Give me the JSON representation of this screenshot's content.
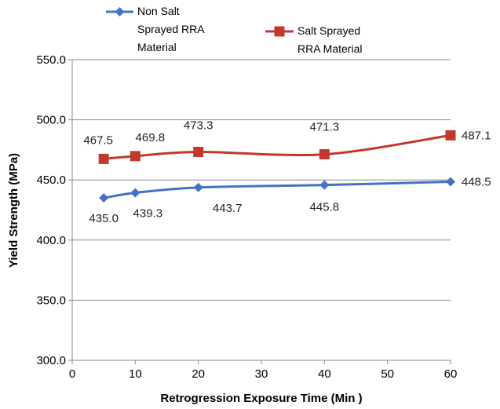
{
  "chart_data": {
    "type": "line",
    "xlabel": "Retrogression Exposure Time (Min )",
    "ylabel": "Yield Strength (MPa)",
    "xlim": [
      0,
      60
    ],
    "ylim": [
      300,
      550
    ],
    "x_ticks": [
      "0",
      "10",
      "20",
      "30",
      "40",
      "50",
      "60"
    ],
    "y_ticks": [
      "300.0",
      "350.0",
      "400.0",
      "450.0",
      "500.0",
      "550.0"
    ],
    "grid": "horizontal",
    "legend": "top",
    "x": [
      5,
      10,
      20,
      40,
      60
    ],
    "series": [
      {
        "name": "Non Salt Sprayed RRA Material",
        "name_lines": [
          "Non Salt",
          "Sprayed RRA",
          "Material"
        ],
        "color": "#4472C4",
        "marker": "diamond",
        "values": [
          435.0,
          439.3,
          443.7,
          445.8,
          448.5
        ],
        "labels": [
          "435.0",
          "439.3",
          "443.7",
          "445.8",
          "448.5"
        ]
      },
      {
        "name": "Salt Sprayed RRA Material",
        "name_lines": [
          "Salt Sprayed",
          "RRA Material"
        ],
        "color": "#C0392B",
        "marker": "square",
        "values": [
          467.5,
          469.8,
          473.3,
          471.3,
          487.1
        ],
        "labels": [
          "467.5",
          "469.8",
          "473.3",
          "471.3",
          "487.1"
        ]
      }
    ]
  }
}
